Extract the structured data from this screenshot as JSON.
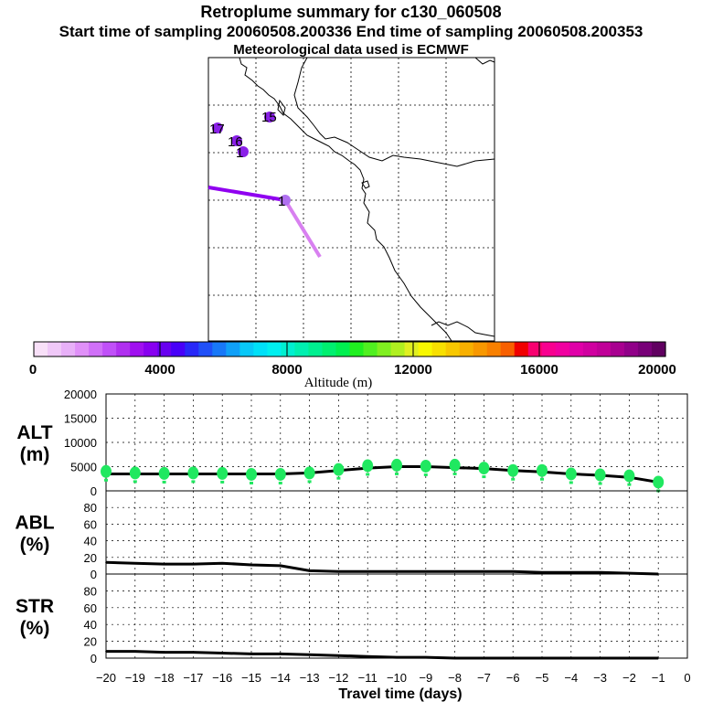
{
  "titles": {
    "line1": "Retroplume summary for c130_060508",
    "line2": "Start time of sampling 20060508.200336     End time of sampling 20060508.200353",
    "line3": "Meteorological data used is ECMWF"
  },
  "colorbar": {
    "label": "Altitude (m)",
    "tick_labels": [
      "0",
      "4000",
      "8000",
      "12000",
      "16000",
      "20000"
    ],
    "colors": [
      "#f8e0f8",
      "#f0c8f8",
      "#e8b0f8",
      "#e090f8",
      "#d070f8",
      "#c050f8",
      "#b030f0",
      "#a010f0",
      "#8800f0",
      "#6800f0",
      "#4800f8",
      "#2828f8",
      "#2050f8",
      "#1878f8",
      "#10a0f8",
      "#08c8f8",
      "#00e0f8",
      "#00f0f0",
      "#00f0d0",
      "#00f0b0",
      "#00f090",
      "#00f070",
      "#00f050",
      "#20f020",
      "#50f020",
      "#80f020",
      "#b0f020",
      "#e0f020",
      "#f8f800",
      "#f8e000",
      "#f8c800",
      "#f8b000",
      "#f89800",
      "#f88000",
      "#f86000",
      "#f00000",
      "#f80070",
      "#f80090",
      "#f000a0",
      "#e000a8",
      "#d000a0",
      "#c00098",
      "#a80090",
      "#900088",
      "#780078",
      "#600060"
    ]
  },
  "map": {
    "day_labels": [
      "17",
      "16",
      "15",
      "1",
      "1"
    ],
    "trajectories": [
      {
        "name": "western-branch",
        "color": "#9000f0"
      },
      {
        "name": "southern-branch",
        "color": "#d880f0"
      }
    ]
  },
  "chart_data": [
    {
      "type": "line",
      "panel": "altitude",
      "ylabel": "ALT\n(m)",
      "ylabel_top": "ALT",
      "ylabel_bottom": "(m)",
      "ylim": [
        0,
        20000
      ],
      "yticks": [
        "20000",
        "15000",
        "10000",
        "5000",
        "0"
      ],
      "x": [
        -20,
        -19,
        -18,
        -17,
        -16,
        -15,
        -14,
        -13,
        -12,
        -11,
        -10,
        -9,
        -8,
        -7,
        -6,
        -5,
        -4,
        -3,
        -2,
        -1
      ],
      "series": [
        {
          "name": "median",
          "color": "#000000",
          "values": [
            3500,
            3500,
            3500,
            3500,
            3500,
            3500,
            3500,
            3700,
            4200,
            4700,
            5000,
            5000,
            4800,
            4600,
            4200,
            3900,
            3500,
            3200,
            2800,
            1800
          ]
        },
        {
          "name": "particle-dots",
          "color": "#20e860",
          "values": [
            4000,
            3700,
            3600,
            3700,
            3600,
            3400,
            3400,
            3700,
            4400,
            5200,
            5300,
            5100,
            5300,
            4700,
            4200,
            4200,
            3500,
            3300,
            3100,
            1800
          ]
        }
      ]
    },
    {
      "type": "line",
      "panel": "abl",
      "ylabel": "ABL\n(%)",
      "ylabel_top": "ABL",
      "ylabel_bottom": "(%)",
      "ylim": [
        0,
        100
      ],
      "yticks": [
        "80",
        "60",
        "40",
        "20",
        "0"
      ],
      "x": [
        -20,
        -19,
        -18,
        -17,
        -16,
        -15,
        -14,
        -13,
        -12,
        -11,
        -10,
        -9,
        -8,
        -7,
        -6,
        -5,
        -4,
        -3,
        -2,
        -1
      ],
      "series": [
        {
          "name": "ABL",
          "color": "#000000",
          "values": [
            14,
            13,
            12,
            12,
            13,
            11,
            10,
            4,
            3,
            3,
            3,
            3,
            3,
            3,
            3,
            2,
            2,
            2,
            1,
            0
          ]
        }
      ]
    },
    {
      "type": "line",
      "panel": "str",
      "ylabel": "STR\n(%)",
      "ylabel_top": "STR",
      "ylabel_bottom": "(%)",
      "ylim": [
        0,
        100
      ],
      "yticks": [
        "80",
        "60",
        "40",
        "20",
        "0"
      ],
      "xlabel": "Travel time (days)",
      "xticks": [
        "−20",
        "−19",
        "−18",
        "−17",
        "−16",
        "−15",
        "−14",
        "−13",
        "−12",
        "−11",
        "−10",
        "−9",
        "−8",
        "−7",
        "−6",
        "−5",
        "−4",
        "−3",
        "−2",
        "−1",
        "0"
      ],
      "x": [
        -20,
        -19,
        -18,
        -17,
        -16,
        -15,
        -14,
        -13,
        -12,
        -11,
        -10,
        -9,
        -8,
        -7,
        -6,
        -5,
        -4,
        -3,
        -2,
        -1
      ],
      "series": [
        {
          "name": "STR",
          "color": "#000000",
          "values": [
            8,
            8,
            7,
            7,
            6,
            5,
            5,
            4,
            3,
            2,
            1,
            1,
            0,
            0,
            0,
            0,
            0,
            0,
            0,
            0
          ]
        }
      ]
    }
  ]
}
